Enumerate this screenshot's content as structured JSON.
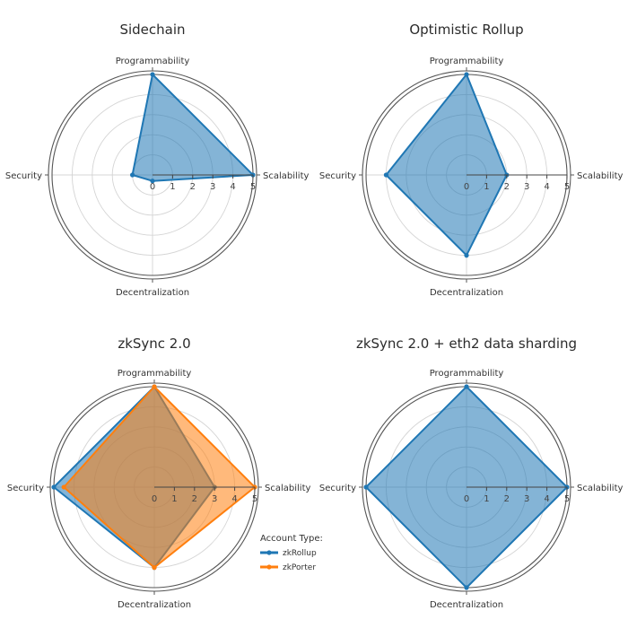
{
  "chart_data": [
    {
      "type": "radar",
      "title": "Sidechain",
      "axes": [
        "Programmability",
        "Scalability",
        "Decentralization",
        "Security"
      ],
      "rlim": [
        0,
        5
      ],
      "ticks": [
        "0",
        "1",
        "2",
        "3",
        "4",
        "5"
      ],
      "series": [
        {
          "values": [
            5,
            5,
            0.3,
            1
          ],
          "color": "#1f77b4"
        }
      ]
    },
    {
      "type": "radar",
      "title": "Optimistic Rollup",
      "axes": [
        "Programmability",
        "Scalability",
        "Decentralization",
        "Security"
      ],
      "rlim": [
        0,
        5
      ],
      "ticks": [
        "0",
        "1",
        "2",
        "3",
        "4",
        "5"
      ],
      "series": [
        {
          "values": [
            5,
            2,
            4,
            4
          ],
          "color": "#1f77b4"
        }
      ]
    },
    {
      "type": "radar",
      "title": "zkSync 2.0",
      "axes": [
        "Programmability",
        "Scalability",
        "Decentralization",
        "Security"
      ],
      "rlim": [
        0,
        5
      ],
      "ticks": [
        "0",
        "1",
        "2",
        "3",
        "4",
        "5"
      ],
      "series": [
        {
          "name": "zkRollup",
          "values": [
            5,
            3,
            4,
            5
          ],
          "color": "#1f77b4"
        },
        {
          "name": "zkPorter",
          "values": [
            5,
            5,
            4,
            4.5
          ],
          "color": "#ff7f0e"
        }
      ],
      "legend": {
        "title": "Account Type:",
        "placement": "bottom-right"
      }
    },
    {
      "type": "radar",
      "title": "zkSync 2.0 + eth2 data sharding",
      "axes": [
        "Programmability",
        "Scalability",
        "Decentralization",
        "Security"
      ],
      "rlim": [
        0,
        5
      ],
      "ticks": [
        "0",
        "1",
        "2",
        "3",
        "4",
        "5"
      ],
      "series": [
        {
          "values": [
            5,
            5,
            5,
            5
          ],
          "color": "#1f77b4"
        }
      ]
    }
  ]
}
